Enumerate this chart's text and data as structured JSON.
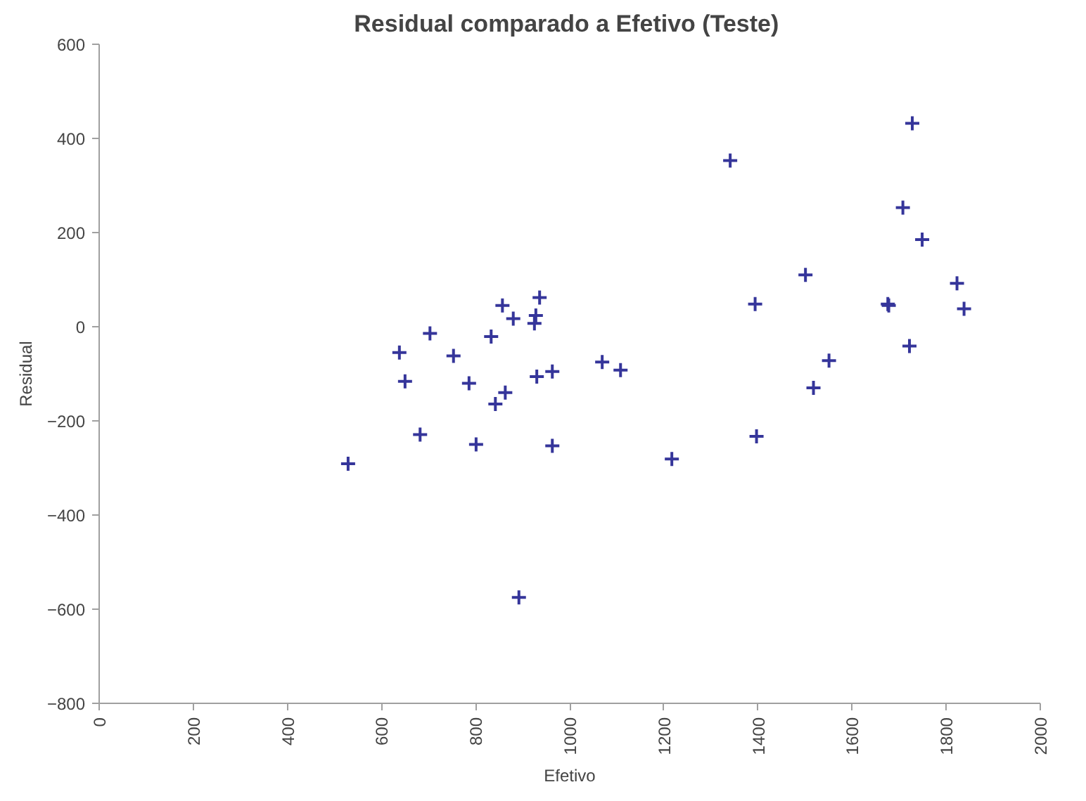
{
  "chart_data": {
    "type": "scatter",
    "title": "Residual comparado  a Efetivo (Teste)",
    "xlabel": "Efetivo",
    "ylabel": "Residual",
    "x": [
      529,
      638,
      650,
      682,
      703,
      753,
      786,
      801,
      833,
      842,
      857,
      863,
      880,
      892,
      925,
      928,
      936,
      930,
      963,
      963,
      1069,
      1108,
      1217,
      1341,
      1394,
      1397,
      1501,
      1518,
      1551,
      1676,
      1678,
      1708,
      1722,
      1728,
      1749,
      1823,
      1838
    ],
    "series": [
      {
        "color": "#35359a",
        "values": [
          -291,
          -55,
          -116,
          -229,
          -14,
          -62,
          -120,
          -250,
          -21,
          -164,
          45,
          -140,
          17,
          -575,
          7,
          24,
          62,
          -106,
          -95,
          -253,
          -75,
          -92,
          -281,
          353,
          48,
          -233,
          110,
          -130,
          -72,
          48,
          45,
          253,
          -41,
          432,
          185,
          92,
          38
        ]
      }
    ],
    "xlim": [
      0,
      2000
    ],
    "xticks": [
      0,
      200,
      400,
      600,
      800,
      1000,
      1200,
      1400,
      1600,
      1800,
      2000
    ],
    "ylim": [
      -800,
      600
    ],
    "yticks": [
      -800,
      -600,
      -400,
      -200,
      0,
      200,
      400,
      600
    ],
    "grid": false,
    "marker": "cross"
  }
}
